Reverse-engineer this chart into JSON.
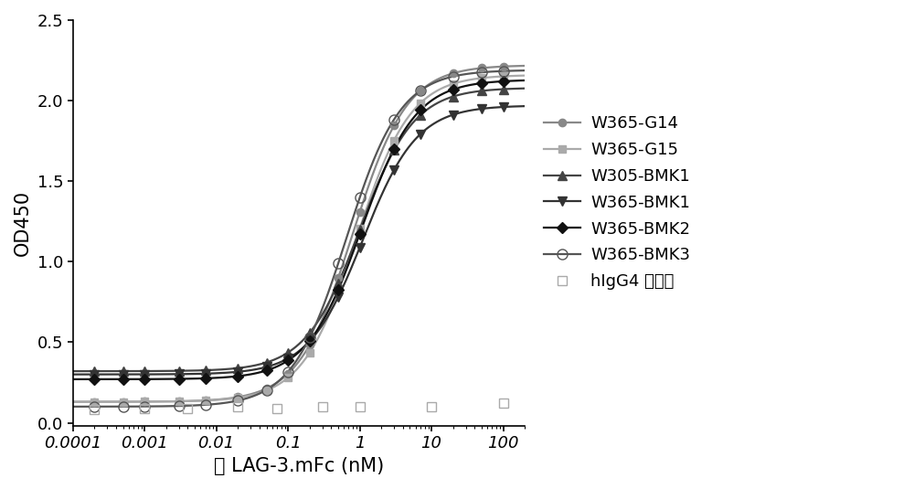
{
  "xlabel": "人 LAG-3.mFc (nM)",
  "ylabel": "OD450",
  "xlim": [
    0.0001,
    200
  ],
  "ylim": [
    -0.02,
    2.5
  ],
  "yticks": [
    0.0,
    0.5,
    1.0,
    1.5,
    2.0,
    2.5
  ],
  "background_color": "#ffffff",
  "series": [
    {
      "label": "W365-G14",
      "color": "#888888",
      "marker": "o",
      "marker_size": 6,
      "linewidth": 1.6,
      "fillstyle": "full",
      "bottom": 0.13,
      "top": 2.22,
      "ec50": 0.8,
      "hill": 1.15
    },
    {
      "label": "W365-G15",
      "color": "#aaaaaa",
      "marker": "s",
      "marker_size": 6,
      "linewidth": 1.6,
      "fillstyle": "full",
      "bottom": 0.13,
      "top": 2.16,
      "ec50": 0.9,
      "hill": 1.15
    },
    {
      "label": "W305-BMK1",
      "color": "#444444",
      "marker": "^",
      "marker_size": 7,
      "linewidth": 1.6,
      "fillstyle": "full",
      "bottom": 0.32,
      "top": 2.08,
      "ec50": 1.0,
      "hill": 1.15
    },
    {
      "label": "W365-BMK1",
      "color": "#333333",
      "marker": "v",
      "marker_size": 7,
      "linewidth": 1.6,
      "fillstyle": "full",
      "bottom": 0.3,
      "top": 1.97,
      "ec50": 1.1,
      "hill": 1.15
    },
    {
      "label": "W365-BMK2",
      "color": "#111111",
      "marker": "D",
      "marker_size": 6,
      "linewidth": 1.6,
      "fillstyle": "full",
      "bottom": 0.27,
      "top": 2.13,
      "ec50": 1.05,
      "hill": 1.15
    },
    {
      "label": "W365-BMK3",
      "color": "#555555",
      "marker": "o",
      "marker_size": 8,
      "linewidth": 1.6,
      "fillstyle": "none",
      "bottom": 0.1,
      "top": 2.19,
      "ec50": 0.65,
      "hill": 1.15
    }
  ],
  "hIgG4_series": {
    "label": "hIgG4 同种型",
    "color": "#aaaaaa",
    "marker": "s",
    "marker_size": 7,
    "fillstyle": "none",
    "y_values": [
      0.08,
      0.09,
      0.09,
      0.1,
      0.09,
      0.1,
      0.1,
      0.1,
      0.12
    ],
    "x_values": [
      0.0002,
      0.001,
      0.004,
      0.02,
      0.07,
      0.3,
      1.0,
      10.0,
      100.0
    ]
  },
  "x_data": [
    0.0002,
    0.0005,
    0.001,
    0.003,
    0.007,
    0.02,
    0.05,
    0.1,
    0.2,
    0.5,
    1.0,
    3.0,
    7.0,
    20.0,
    50.0,
    100.0
  ],
  "legend_fontsize": 13,
  "axis_fontsize": 15,
  "tick_fontsize": 13
}
